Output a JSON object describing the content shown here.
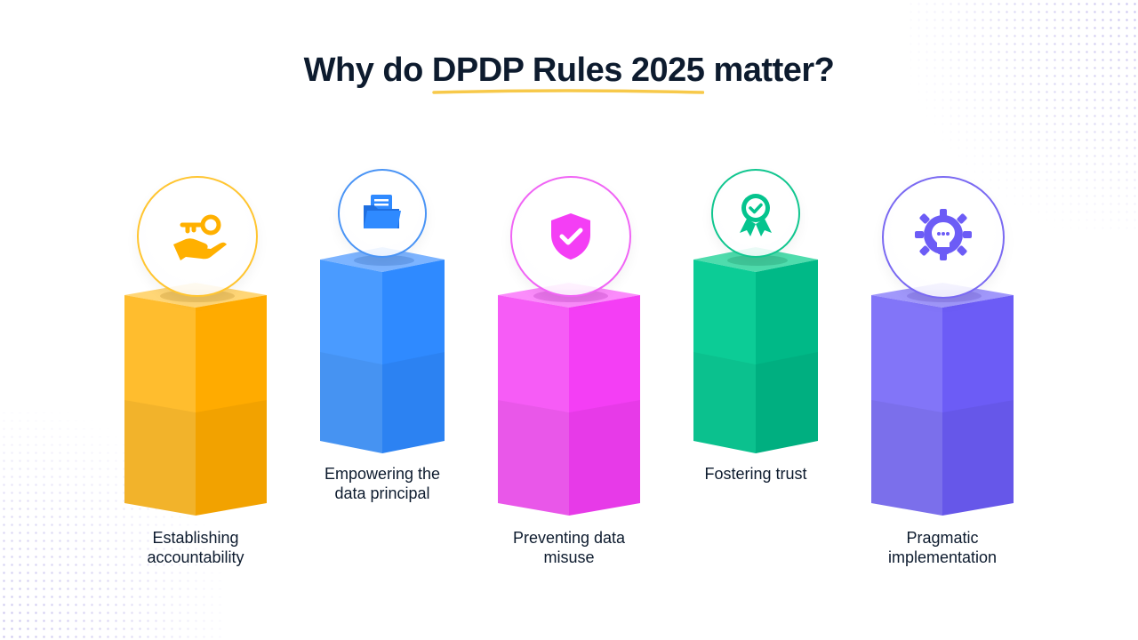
{
  "title": {
    "before": "Why do ",
    "highlight": "DPDP Rules 2025",
    "after": " matter?",
    "underline_color": "#f7c94a"
  },
  "pillars": [
    {
      "label_line1": "Establishing",
      "label_line2": "accountability",
      "icon": "key-in-hand-icon",
      "color": "#ffb000"
    },
    {
      "label_line1": "Empowering the",
      "label_line2": "data principal",
      "icon": "folder-documents-icon",
      "color": "#2f8aff"
    },
    {
      "label_line1": "Preventing data",
      "label_line2": "misuse",
      "icon": "shield-check-icon",
      "color": "#f43ef5"
    },
    {
      "label_line1": "Fostering trust",
      "label_line2": "",
      "icon": "award-badge-icon",
      "color": "#05c48e"
    },
    {
      "label_line1": "Pragmatic",
      "label_line2": "implementation",
      "icon": "lightbulb-gear-icon",
      "color": "#6c5cf6"
    }
  ]
}
